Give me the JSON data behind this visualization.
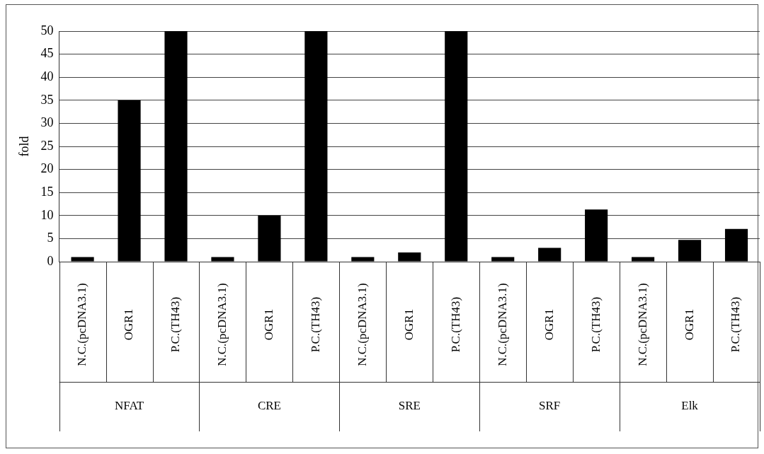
{
  "chart_data": {
    "type": "bar",
    "ylabel": "fold",
    "categories": [
      "N.C.(pcDNA3.1)",
      "OGR1",
      "P.C.(TH43)",
      "N.C.(pcDNA3.1)",
      "OGR1",
      "P.C.(TH43)",
      "N.C.(pcDNA3.1)",
      "OGR1",
      "P.C.(TH43)",
      "N.C.(pcDNA3.1)",
      "OGR1",
      "P.C.(TH43)",
      "N.C.(pcDNA3.1)",
      "OGR1",
      "P.C.(TH43)"
    ],
    "values": [
      1,
      35,
      50,
      1,
      10,
      50,
      1,
      2,
      50,
      1,
      3,
      11.3,
      1,
      4.7,
      7.1
    ],
    "color": "#000000",
    "ylim": [
      0,
      50
    ],
    "yticks": [
      0,
      5,
      10,
      15,
      20,
      25,
      30,
      35,
      40,
      45,
      50
    ],
    "grid": "y",
    "annotations": [
      "NFAT",
      "CRE",
      "SRE",
      "SRF",
      "Elk"
    ]
  }
}
